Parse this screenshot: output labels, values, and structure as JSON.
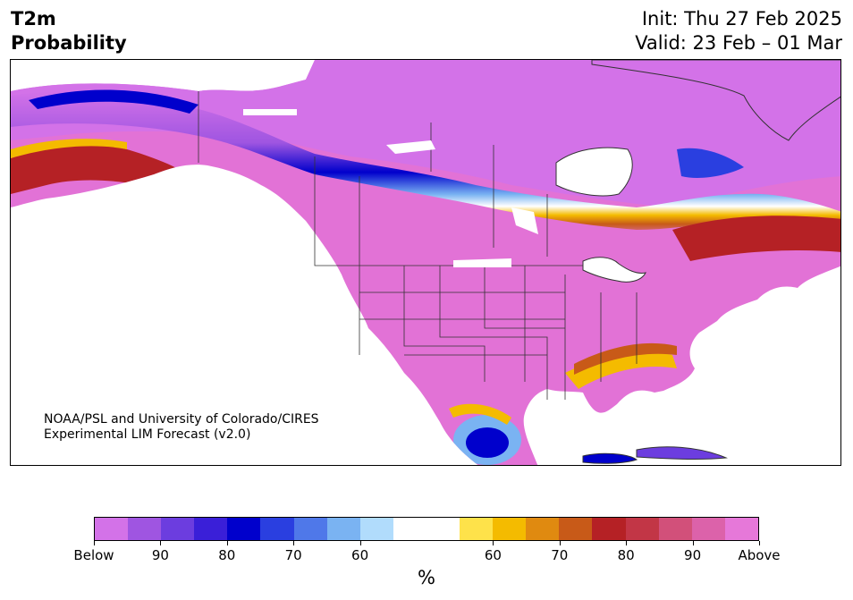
{
  "header": {
    "title_line1": "T2m",
    "title_line2": "Probability",
    "init_text": "Init: Thu 27 Feb 2025",
    "valid_text": "Valid: 23 Feb – 01 Mar"
  },
  "credit": {
    "line1": "NOAA/PSL and University of Colorado/CIRES",
    "line2": "Experimental LIM Forecast (v2.0)"
  },
  "colorbar": {
    "colors": [
      "#d372e8",
      "#9f55e1",
      "#6c3ddf",
      "#3a1fd8",
      "#0000cc",
      "#2a3fe0",
      "#4f78e9",
      "#7ab3f2",
      "#b1dcfc",
      "#ffffff",
      "#ffffff",
      "#fee24a",
      "#f4bb00",
      "#e08a10",
      "#c85a18",
      "#b52125",
      "#c23646",
      "#d2507a",
      "#dc62aa",
      "#e678d9"
    ],
    "tick_labels": [
      "Below",
      "90",
      "80",
      "70",
      "60",
      "60",
      "70",
      "80",
      "90",
      "Above"
    ],
    "unit": "%"
  },
  "map": {
    "colors": {
      "above": "#e272d6",
      "below": "#d372e8",
      "deep_blue": "#0000cc",
      "orange": "#f4bb00",
      "red": "#b52125",
      "land_outline": "#333333"
    }
  }
}
